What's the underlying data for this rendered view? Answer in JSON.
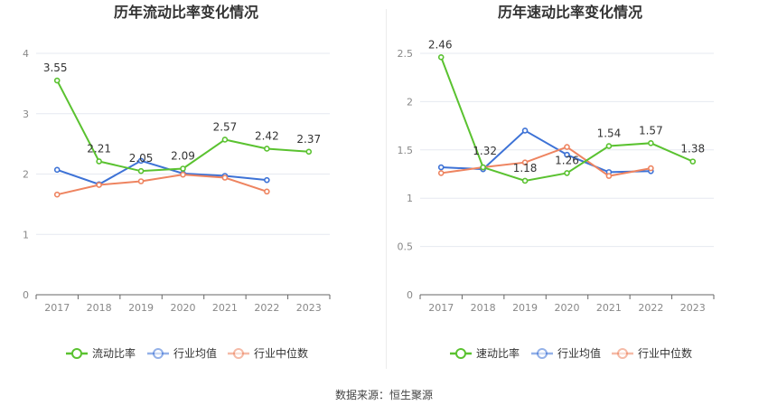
{
  "colors": {
    "green": "#5ac230",
    "blue": "#3d72d6",
    "orange": "#ee8460",
    "axis": "#888888",
    "grid": "#e6e9f0",
    "divider": "#e8e8e8"
  },
  "source": "数据来源：恒生聚源",
  "chart_data": [
    {
      "type": "line",
      "title": "历年流动比率变化情况",
      "categories": [
        "2017",
        "2018",
        "2019",
        "2020",
        "2021",
        "2022",
        "2023"
      ],
      "ylim": [
        0,
        4
      ],
      "yticks": [
        "0",
        "1",
        "2",
        "3",
        "4"
      ],
      "series": [
        {
          "name": "流动比率",
          "values": [
            3.55,
            2.21,
            2.05,
            2.09,
            2.57,
            2.42,
            2.37
          ],
          "labels": [
            "3.55",
            "2.21",
            "2.05",
            "2.09",
            "2.57",
            "2.42",
            "2.37"
          ],
          "show_labels": true
        },
        {
          "name": "行业均值",
          "values": [
            2.07,
            1.83,
            2.22,
            2.01,
            1.97,
            1.9,
            null
          ]
        },
        {
          "name": "行业中位数",
          "values": [
            1.66,
            1.82,
            1.88,
            1.99,
            1.94,
            1.71,
            null
          ]
        }
      ]
    },
    {
      "type": "line",
      "title": "历年速动比率变化情况",
      "categories": [
        "2017",
        "2018",
        "2019",
        "2020",
        "2021",
        "2022",
        "2023"
      ],
      "ylim": [
        0,
        2.5
      ],
      "yticks": [
        "0",
        "0.5",
        "1",
        "1.5",
        "2",
        "2.5"
      ],
      "series": [
        {
          "name": "速动比率",
          "values": [
            2.46,
            1.32,
            1.18,
            1.26,
            1.54,
            1.57,
            1.38
          ],
          "labels": [
            "2.46",
            "1.32",
            "1.18",
            "1.26",
            "1.54",
            "1.57",
            "1.38"
          ],
          "show_labels": true
        },
        {
          "name": "行业均值",
          "values": [
            1.32,
            1.3,
            1.7,
            1.45,
            1.27,
            1.28,
            null
          ]
        },
        {
          "name": "行业中位数",
          "values": [
            1.26,
            1.32,
            1.37,
            1.53,
            1.23,
            1.31,
            null
          ]
        }
      ]
    }
  ]
}
